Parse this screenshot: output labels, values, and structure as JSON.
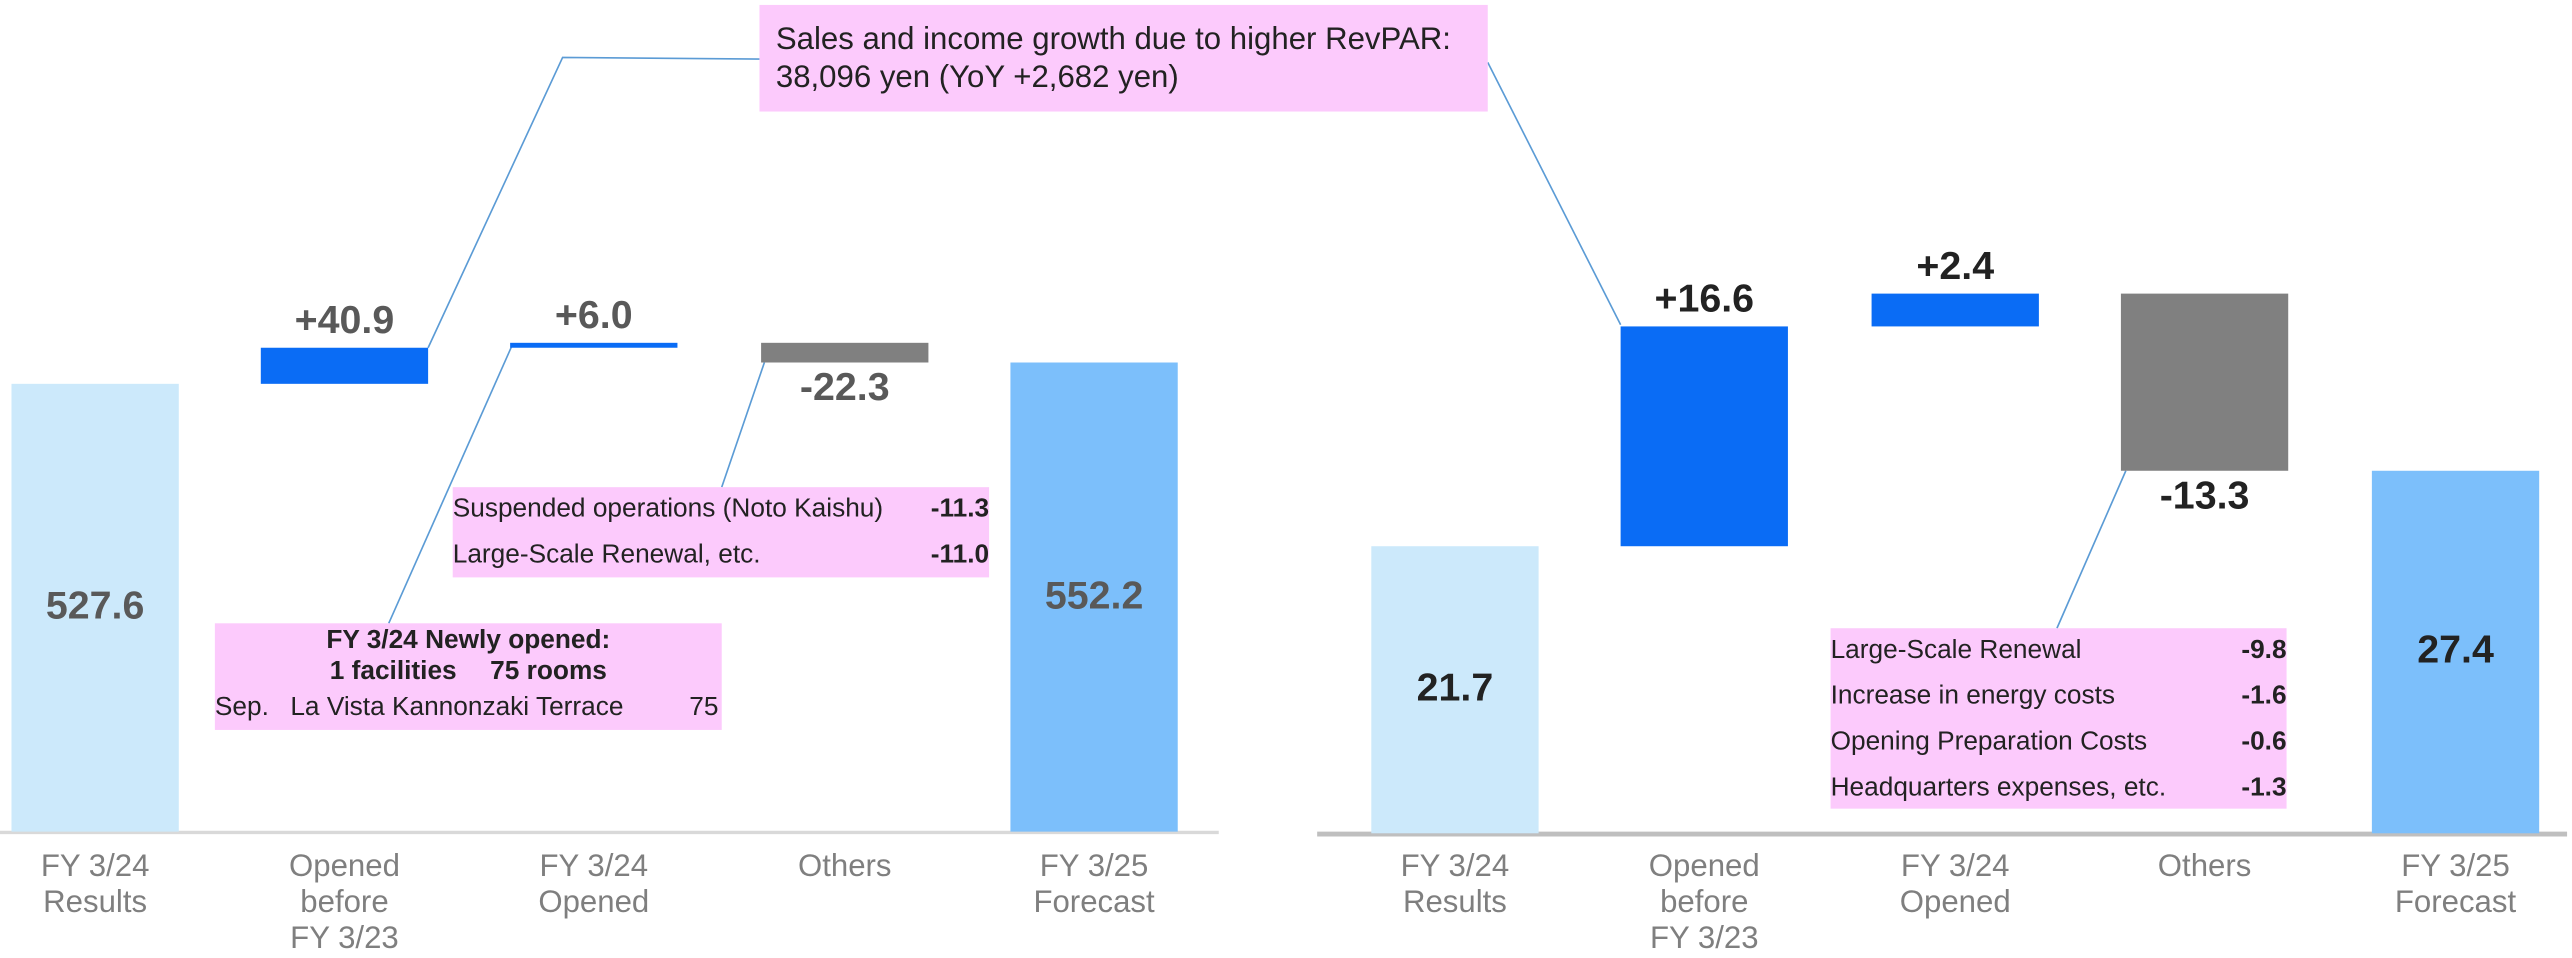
{
  "chart_data": [
    {
      "type": "waterfall",
      "categories": [
        "FY 3/24\nResults",
        "Opened\nbefore\nFY 3/23",
        "FY 3/24\nOpened",
        "Others",
        "FY 3/25\nForecast"
      ],
      "measure": [
        "absolute",
        "relative",
        "relative",
        "relative",
        "absolute"
      ],
      "values": [
        527.6,
        40.9,
        6.0,
        -22.3,
        552.2
      ],
      "value_labels": [
        "527.6",
        "+40.9",
        "+6.0",
        "-22.3",
        "552.2"
      ],
      "colors": [
        "#cce9fb",
        "#0a6cf5",
        "#0a6cf5",
        "#808080",
        "#7cbffb"
      ],
      "label_color": "#595959",
      "ylim": [
        10,
        600
      ]
    },
    {
      "type": "waterfall",
      "categories": [
        "FY 3/24\nResults",
        "Opened\nbefore\nFY 3/23",
        "FY 3/24\nOpened",
        "Others",
        "FY 3/25\nForecast"
      ],
      "measure": [
        "absolute",
        "relative",
        "relative",
        "relative",
        "absolute"
      ],
      "values": [
        21.7,
        16.6,
        2.4,
        -13.3,
        27.4
      ],
      "value_labels": [
        "21.7",
        "+16.6",
        "+2.4",
        "-13.3",
        "27.4"
      ],
      "colors": [
        "#cce9fb",
        "#0a6cf5",
        "#0a6cf5",
        "#808080",
        "#7cbffb"
      ],
      "label_color": "#222222",
      "ylim": [
        0,
        40
      ]
    }
  ],
  "callouts": {
    "revpar": "Sales and income growth due to higher RevPAR:\n38,096 yen (YoY +2,682 yen)",
    "others_left": [
      [
        "Suspended operations (Noto Kaishu)",
        "-11.3"
      ],
      [
        "Large-Scale Renewal, etc.",
        "-11.0"
      ]
    ],
    "new_open": {
      "heading": "FY 3/24 Newly opened:\n1 facilities　 75 rooms",
      "row": [
        "Sep.",
        "La Vista Kannonzaki Terrace",
        "75"
      ]
    },
    "others_right": [
      [
        "Large-Scale Renewal",
        "-9.8"
      ],
      [
        "Increase in energy costs",
        "-1.6"
      ],
      [
        "Opening Preparation Costs",
        "-0.6"
      ],
      [
        "Headquarters expenses, etc.",
        "-1.3"
      ]
    ]
  }
}
